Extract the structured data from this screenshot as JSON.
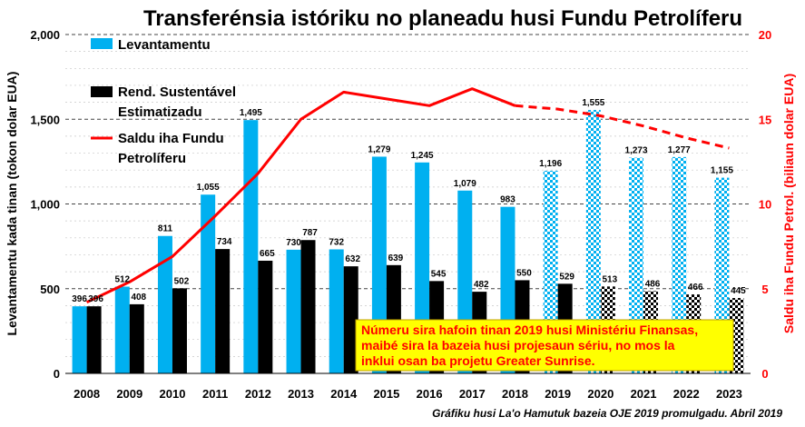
{
  "chart_data": {
    "type": "bar",
    "title": "Transferénsia istóriku no planeadu husi Fundu Petrolíferu",
    "categories": [
      "2008",
      "2009",
      "2010",
      "2011",
      "2012",
      "2013",
      "2014",
      "2015",
      "2016",
      "2017",
      "2018",
      "2019",
      "2020",
      "2021",
      "2022",
      "2023"
    ],
    "series": [
      {
        "name": "Levantamentu",
        "axis": "left",
        "color": "#00b0f0",
        "values": [
          396,
          512,
          811,
          1055,
          1495,
          730,
          732,
          1279,
          1245,
          1079,
          983,
          1196,
          1555,
          1273,
          1277,
          1155
        ],
        "pattern_from": "2019"
      },
      {
        "name": "Rend. Sustentável Estimatizadu",
        "legend_lines": [
          "Rend. Sustentável",
          "Estimatizadu"
        ],
        "axis": "left",
        "color": "#000000",
        "values": [
          396,
          408,
          502,
          734,
          665,
          787,
          632,
          639,
          545,
          482,
          550,
          529,
          513,
          486,
          466,
          445
        ],
        "pattern_from": "2020"
      },
      {
        "name": "Saldu iha Fundu Petrolíferu",
        "legend_lines": [
          "Saldu iha Fundu",
          "Petrolíferu"
        ],
        "type": "line",
        "axis": "right",
        "color": "#ff0000",
        "values": [
          4.2,
          5.4,
          6.9,
          9.3,
          11.8,
          15.0,
          16.6,
          16.2,
          15.8,
          16.8,
          15.8,
          15.6,
          15.2,
          14.6,
          13.9,
          13.3
        ],
        "dashed_from": "2018"
      }
    ],
    "ylabel": "Levantamentu kada tinan (tokon dolar EUA)",
    "y2label": "Saldu iha Fundu Petrol. (biliaun dolar EUA)",
    "ylim": [
      0,
      2000
    ],
    "y2lim": [
      0,
      20
    ],
    "yticks": [
      "0",
      "500",
      "1,000",
      "1,500",
      "2,000"
    ],
    "y2ticks": [
      "0",
      "5",
      "10",
      "15",
      "20"
    ],
    "grid": "horizontal dashed",
    "legend_position": "top-left"
  },
  "note": {
    "lines": [
      "Númeru sira hafoin tinan 2019 husi Ministériu Finansas,",
      "maibé sira la bazeia husi projesaun sériu, no mos la",
      "inklui osan ba projetu Greater Sunrise."
    ],
    "background": "#ffff00",
    "color": "#ff0000"
  },
  "footer": "Gráfiku husi La'o Hamutuk bazeia OJE 2019 promulgadu.  Abril 2019",
  "colors": {
    "left_axis": "#000000",
    "right_axis": "#ff0000"
  }
}
